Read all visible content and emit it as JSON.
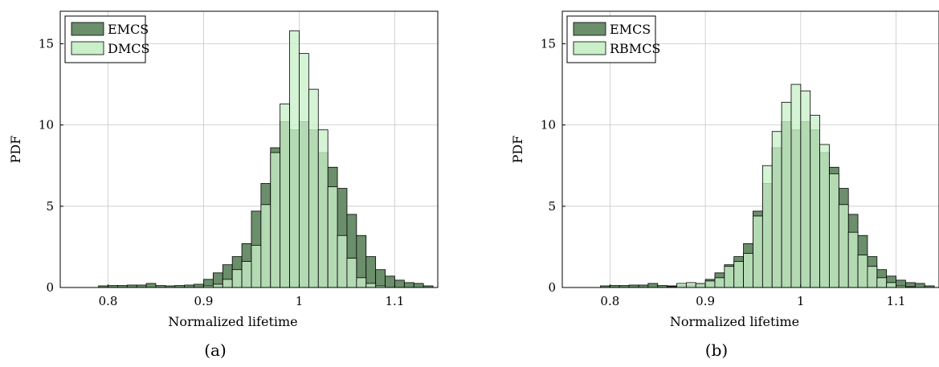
{
  "figure": {
    "captions": [
      "(a)",
      "(b)"
    ]
  },
  "chart_data": [
    {
      "type": "bar",
      "subtype": "overlaid histogram",
      "panel_label": "(a)",
      "xlabel": "Normalized lifetime",
      "ylabel": "PDF",
      "xlim": [
        0.75,
        1.145
      ],
      "ylim": [
        0,
        17
      ],
      "xticks": [
        0.8,
        0.9,
        1,
        1.1
      ],
      "xtick_labels": [
        "0.8",
        "0.9",
        "1",
        "1.1"
      ],
      "yticks": [
        0,
        5,
        10,
        15
      ],
      "ytick_labels": [
        "0",
        "5",
        "10",
        "15"
      ],
      "grid": true,
      "legend_position": "top-left",
      "bin_width": 0.01,
      "bin_starts": [
        0.76,
        0.77,
        0.78,
        0.79,
        0.8,
        0.81,
        0.82,
        0.83,
        0.84,
        0.85,
        0.86,
        0.87,
        0.88,
        0.89,
        0.9,
        0.91,
        0.92,
        0.93,
        0.94,
        0.95,
        0.96,
        0.97,
        0.98,
        0.99,
        1.0,
        1.01,
        1.02,
        1.03,
        1.04,
        1.05,
        1.06,
        1.07,
        1.08,
        1.09,
        1.1,
        1.11,
        1.12,
        1.13
      ],
      "series": [
        {
          "name": "EMCS",
          "color": "#6b8e6b",
          "values": [
            0,
            0,
            0,
            0.1,
            0.12,
            0.12,
            0.15,
            0.15,
            0.25,
            0.12,
            0.1,
            0.12,
            0.15,
            0.2,
            0.5,
            0.9,
            1.4,
            1.9,
            2.7,
            4.7,
            6.4,
            8.6,
            10.2,
            9.7,
            10.2,
            9.7,
            8.3,
            7.4,
            6.1,
            4.5,
            3.2,
            1.9,
            1.1,
            0.7,
            0.45,
            0.3,
            0.25,
            0.1
          ]
        },
        {
          "name": "DMCS",
          "color": "#c9f0c9",
          "values": [
            0,
            0,
            0,
            0,
            0,
            0,
            0,
            0,
            0,
            0,
            0,
            0,
            0,
            0,
            0.1,
            0.2,
            0.5,
            1.1,
            1.6,
            2.6,
            5.1,
            8.3,
            11.3,
            15.8,
            14.4,
            12.2,
            9.7,
            6.2,
            3.2,
            1.8,
            0.6,
            0.25,
            0.1,
            0,
            0,
            0,
            0,
            0
          ]
        }
      ]
    },
    {
      "type": "bar",
      "subtype": "overlaid histogram",
      "panel_label": "(b)",
      "xlabel": "Normalized lifetime",
      "ylabel": "PDF",
      "xlim": [
        0.75,
        1.145
      ],
      "ylim": [
        0,
        17
      ],
      "xticks": [
        0.8,
        0.9,
        1,
        1.1
      ],
      "xtick_labels": [
        "0.8",
        "0.9",
        "1",
        "1.1"
      ],
      "yticks": [
        0,
        5,
        10,
        15
      ],
      "ytick_labels": [
        "0",
        "5",
        "10",
        "15"
      ],
      "grid": true,
      "legend_position": "top-left",
      "bin_width": 0.01,
      "bin_starts": [
        0.76,
        0.77,
        0.78,
        0.79,
        0.8,
        0.81,
        0.82,
        0.83,
        0.84,
        0.85,
        0.86,
        0.87,
        0.88,
        0.89,
        0.9,
        0.91,
        0.92,
        0.93,
        0.94,
        0.95,
        0.96,
        0.97,
        0.98,
        0.99,
        1.0,
        1.01,
        1.02,
        1.03,
        1.04,
        1.05,
        1.06,
        1.07,
        1.08,
        1.09,
        1.1,
        1.11,
        1.12,
        1.13
      ],
      "series": [
        {
          "name": "EMCS",
          "color": "#6b8e6b",
          "values": [
            0,
            0,
            0,
            0.1,
            0.12,
            0.12,
            0.15,
            0.15,
            0.25,
            0.12,
            0.1,
            0.12,
            0.15,
            0.2,
            0.5,
            0.9,
            1.4,
            1.9,
            2.7,
            4.7,
            6.4,
            8.6,
            10.2,
            9.7,
            10.2,
            9.7,
            8.3,
            7.4,
            6.1,
            4.5,
            3.2,
            1.9,
            1.1,
            0.7,
            0.45,
            0.3,
            0.25,
            0.1
          ]
        },
        {
          "name": "RBMCS",
          "color": "#c9f0c9",
          "values": [
            0,
            0,
            0,
            0,
            0,
            0,
            0,
            0,
            0,
            0,
            0.05,
            0.25,
            0.3,
            0.25,
            0.4,
            0.6,
            1.3,
            1.6,
            2.1,
            4.4,
            7.5,
            9.6,
            11.4,
            12.5,
            12.1,
            10.6,
            8.8,
            7.0,
            5.1,
            3.4,
            2.0,
            1.3,
            0.6,
            0.3,
            0.1,
            0.05,
            0,
            0
          ]
        }
      ]
    }
  ]
}
